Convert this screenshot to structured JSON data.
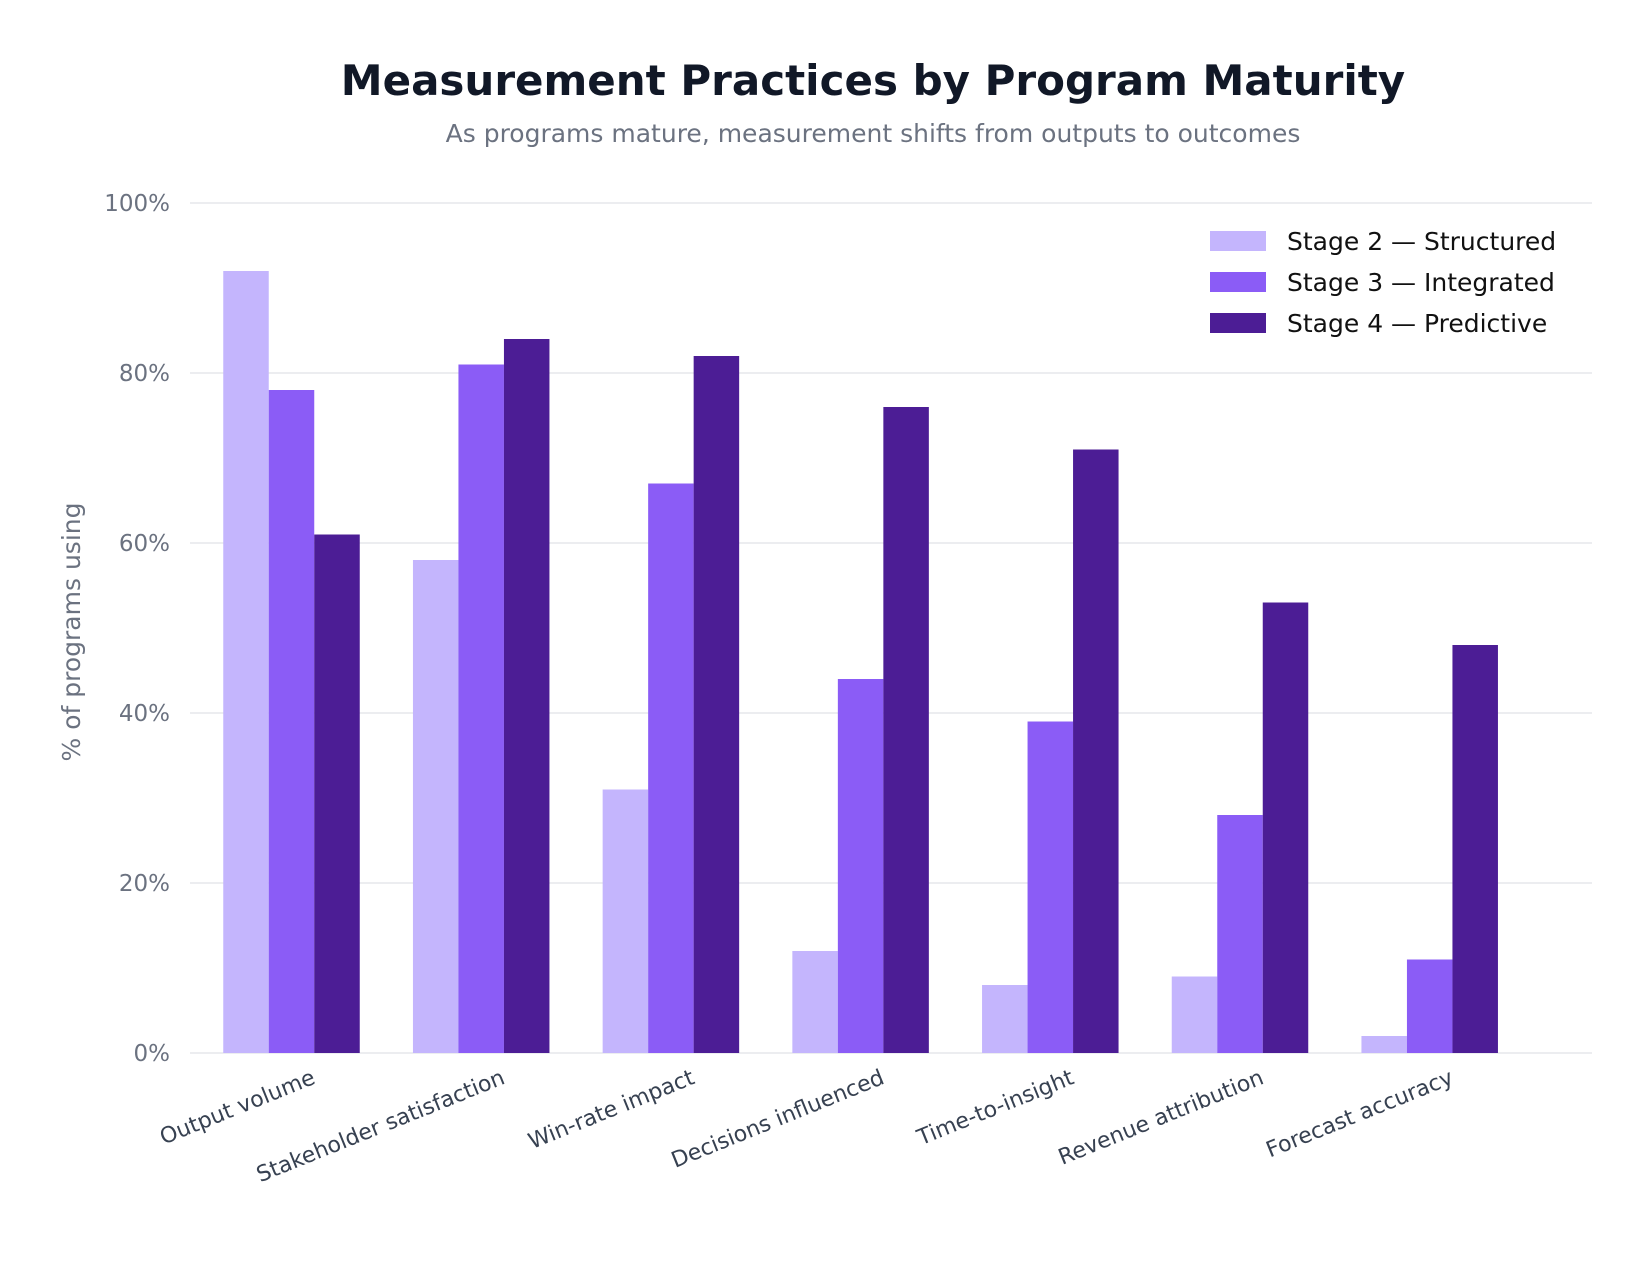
{
  "chart_data": {
    "type": "bar",
    "title": "Measurement Practices by Program Maturity",
    "subtitle": "As programs mature, measurement shifts from outputs to outcomes",
    "xlabel": "",
    "ylabel": "% of programs using",
    "ylim": [
      0,
      100
    ],
    "yticks": [
      0,
      20,
      40,
      60,
      80,
      100
    ],
    "ytick_labels": [
      "0%",
      "20%",
      "40%",
      "60%",
      "80%",
      "100%"
    ],
    "grid": true,
    "legend_position": "top-right",
    "categories": [
      "Output volume",
      "Stakeholder satisfaction",
      "Win-rate impact",
      "Decisions influenced",
      "Time-to-insight",
      "Revenue attribution",
      "Forecast accuracy"
    ],
    "series": [
      {
        "name": "Stage 2 — Structured",
        "color": "#c4b5fd",
        "values": [
          92,
          58,
          31,
          12,
          8,
          9,
          2
        ]
      },
      {
        "name": "Stage 3 — Integrated",
        "color": "#8b5cf6",
        "values": [
          78,
          81,
          67,
          44,
          39,
          28,
          11
        ]
      },
      {
        "name": "Stage 4 — Predictive",
        "color": "#4c1d95",
        "values": [
          61,
          84,
          82,
          76,
          71,
          53,
          48
        ]
      }
    ]
  }
}
